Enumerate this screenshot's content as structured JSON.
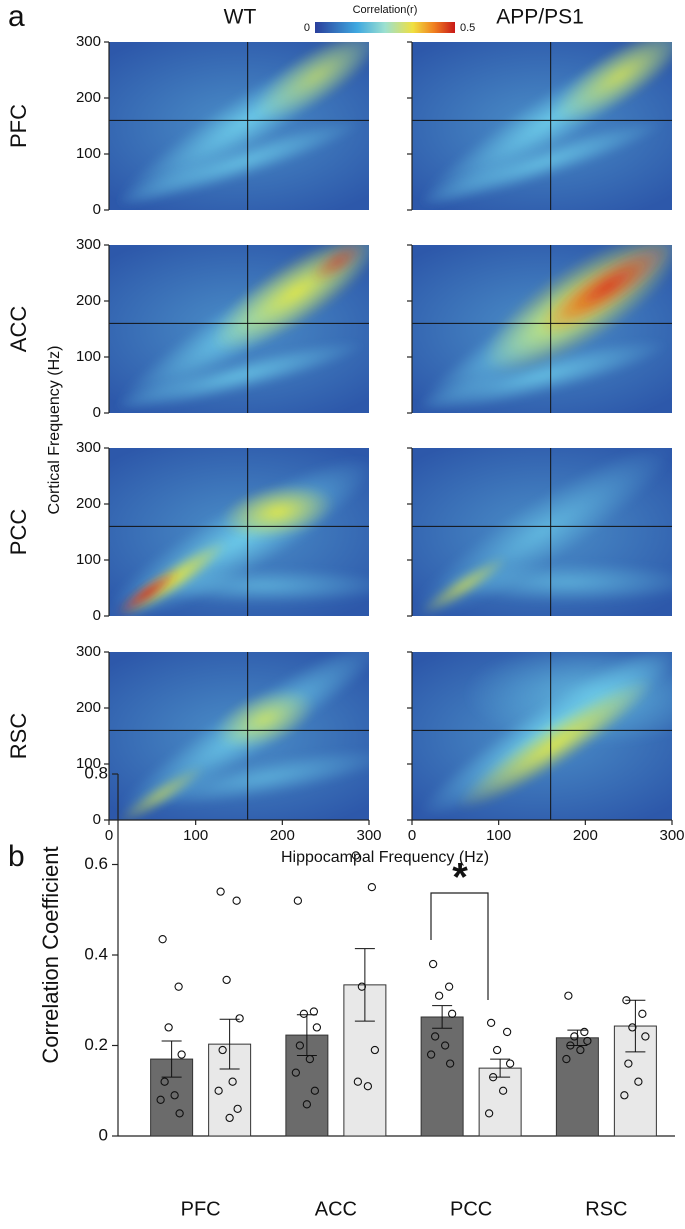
{
  "chart_data": [
    {
      "type": "heatmap",
      "panel_label": "a",
      "columns": [
        "WT",
        "APP/PS1"
      ],
      "rows": [
        "PFC",
        "ACC",
        "PCC",
        "RSC"
      ],
      "xlabel": "Hippocampal Frequency (Hz)",
      "ylabel": "Cortical Frequency (Hz)",
      "xlim": [
        0,
        300
      ],
      "ylim": [
        0,
        300
      ],
      "xticks": [
        0,
        100,
        200,
        300
      ],
      "yticks": [
        0,
        100,
        200,
        300
      ],
      "reference_lines": {
        "x": 160,
        "y": 160
      },
      "colorbar": {
        "label": "Correlation(r)",
        "lim": [
          0,
          0.5
        ],
        "ticks": [
          0,
          0.5
        ]
      }
    },
    {
      "type": "bar",
      "panel_label": "b",
      "ylabel": "Correlation Coefficient",
      "categories": [
        "PFC",
        "ACC",
        "PCC",
        "RSC"
      ],
      "ylim": [
        0,
        0.8
      ],
      "yticks": [
        0,
        0.2,
        0.4,
        0.6,
        0.8
      ],
      "series": [
        {
          "color": "#6b6b6b",
          "values": [
            0.17,
            0.223,
            0.263,
            0.217
          ],
          "errors": [
            0.04,
            0.045,
            0.025,
            0.017
          ],
          "points": [
            [
              0.435,
              0.33,
              0.24,
              0.18,
              0.12,
              0.09,
              0.08,
              0.05
            ],
            [
              0.52,
              0.275,
              0.27,
              0.24,
              0.2,
              0.17,
              0.14,
              0.1,
              0.07
            ],
            [
              0.38,
              0.33,
              0.31,
              0.27,
              0.22,
              0.2,
              0.18,
              0.16
            ],
            [
              0.31,
              0.23,
              0.22,
              0.21,
              0.2,
              0.19,
              0.17
            ]
          ]
        },
        {
          "color": "#e8e8e8",
          "values": [
            0.203,
            0.334,
            0.15,
            0.243
          ],
          "errors": [
            0.055,
            0.08,
            0.02,
            0.057
          ],
          "points": [
            [
              0.54,
              0.52,
              0.345,
              0.26,
              0.19,
              0.12,
              0.1,
              0.06,
              0.04
            ],
            [
              0.62,
              0.55,
              0.33,
              0.19,
              0.12,
              0.11
            ],
            [
              0.25,
              0.23,
              0.19,
              0.16,
              0.13,
              0.1,
              0.05
            ],
            [
              0.3,
              0.27,
              0.24,
              0.22,
              0.16,
              0.12,
              0.09
            ]
          ]
        }
      ],
      "annotation": {
        "text": "*",
        "category": "PCC"
      }
    }
  ]
}
